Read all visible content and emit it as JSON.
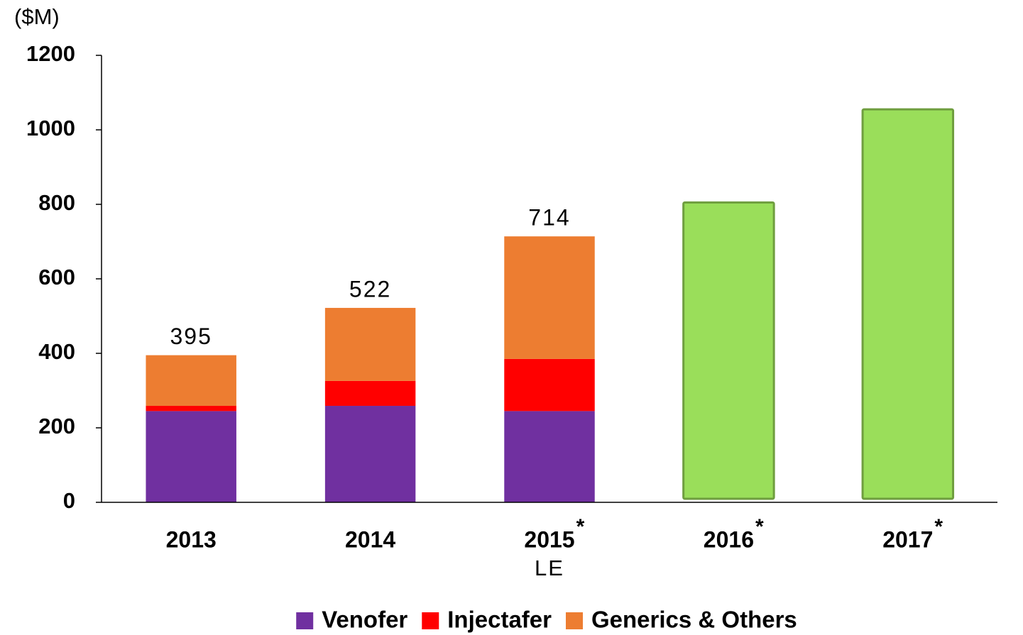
{
  "chart_data": {
    "type": "stacked_bar",
    "y_label": "($M)",
    "categories": [
      "2013",
      "2014",
      "2015",
      "2016",
      "2017"
    ],
    "category_marks": [
      null,
      null,
      "*",
      "*",
      "*"
    ],
    "category_sublabels": [
      null,
      null,
      "LE",
      null,
      null
    ],
    "series": [
      {
        "name": "Venofer",
        "color": "#7030a0",
        "values": [
          245,
          259,
          245,
          null,
          null
        ]
      },
      {
        "name": "Injectafer",
        "color": "#ff0000",
        "values": [
          14,
          67,
          140,
          null,
          null
        ]
      },
      {
        "name": "Generics & Others",
        "color": "#ed7d31",
        "values": [
          136,
          196,
          329,
          null,
          null
        ]
      },
      {
        "color": "#9ade5a",
        "values": [
          null,
          null,
          null,
          805,
          1055
        ]
      }
    ],
    "totals": [
      395,
      522,
      714,
      null,
      null
    ],
    "ylim": [
      0,
      1200
    ],
    "yticks": [
      0,
      200,
      400,
      600,
      800,
      1000,
      1200
    ],
    "grid": false
  }
}
